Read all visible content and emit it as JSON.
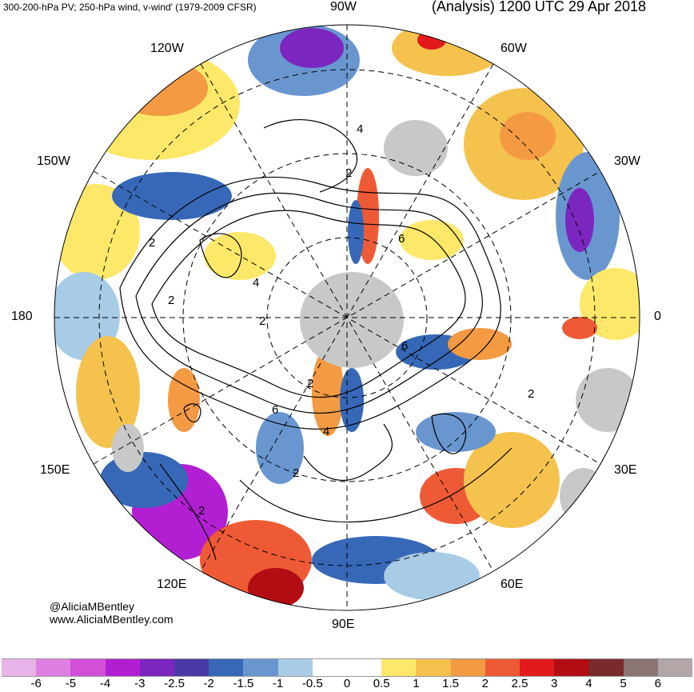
{
  "header": {
    "left_title": "300-200-hPa PV; 250-hPa wind, v-wind' (1979-2009 CFSR)",
    "right_title": "(Analysis) 1200 UTC 29 Apr 2018"
  },
  "longitude_labels": {
    "n90w": "90W",
    "n120w": "120W",
    "n60w": "60W",
    "n150w": "150W",
    "n30w": "30W",
    "n180": "180",
    "n0": "0",
    "n150e": "150E",
    "n30e": "30E",
    "n120e": "120E",
    "n60e": "60E",
    "n90e": "90E"
  },
  "contour_labels": [
    "4",
    "2",
    "2",
    "6",
    "2",
    "4",
    "2",
    "6",
    "2",
    "6",
    "4",
    "2",
    "2",
    "2"
  ],
  "credits": {
    "handle": "@AliciaMBentley",
    "site": "www.AliciaMBentley.com"
  },
  "colorbar": {
    "colors": [
      "#e8b3e8",
      "#e07fe3",
      "#d24fd8",
      "#b21fd2",
      "#7c26c0",
      "#4a3aa8",
      "#3768b8",
      "#6a96d0",
      "#a8cbe6",
      "#ffffff",
      "#ffffff",
      "#fde869",
      "#f5c24e",
      "#f39a43",
      "#ee5a35",
      "#e31a1c",
      "#b10d12",
      "#7a2a2a",
      "#8a7474",
      "#b2a6a6"
    ],
    "tick_labels": [
      "-6",
      "-5",
      "-4",
      "-3",
      "-2.5",
      "-2",
      "-1.5",
      "-1",
      "-0.5",
      "0",
      "0.5",
      "1",
      "1.5",
      "2",
      "2.5",
      "3",
      "4",
      "5",
      "6"
    ]
  }
}
